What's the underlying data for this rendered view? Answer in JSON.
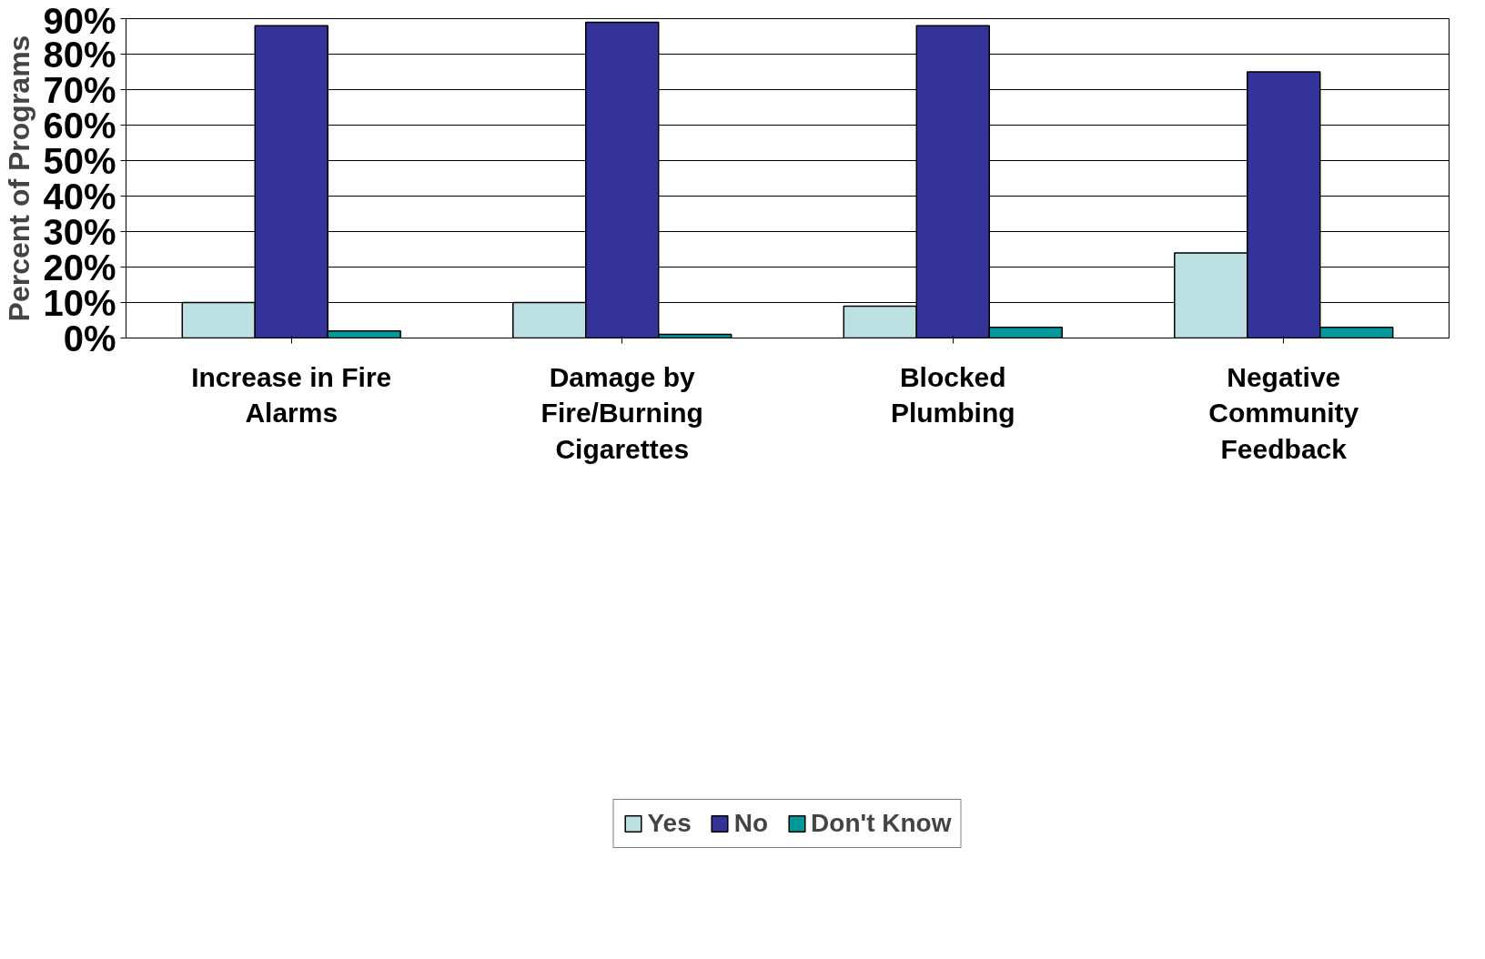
{
  "chart_data": {
    "type": "bar",
    "ylabel": "Percent of Programs",
    "categories": [
      "Increase in Fire\nAlarms",
      "Damage by\nFire/Burning\nCigarettes",
      "Blocked\nPlumbing",
      "Negative\nCommunity\nFeedback"
    ],
    "series": [
      {
        "name": "Yes",
        "color": "#bde0e3",
        "values": [
          10,
          10,
          9,
          24
        ]
      },
      {
        "name": "No",
        "color": "#333399",
        "values": [
          88,
          89,
          88,
          75
        ]
      },
      {
        "name": "Don't Know",
        "color": "#009999",
        "values": [
          2,
          1,
          3,
          3
        ]
      }
    ],
    "ylim": [
      0,
      90
    ],
    "yticks": [
      {
        "value": 0,
        "label": "0%"
      },
      {
        "value": 10,
        "label": "10%"
      },
      {
        "value": 20,
        "label": "20%"
      },
      {
        "value": 30,
        "label": "30%"
      },
      {
        "value": 40,
        "label": "40%"
      },
      {
        "value": 50,
        "label": "50%"
      },
      {
        "value": 60,
        "label": "60%"
      },
      {
        "value": 70,
        "label": "70%"
      },
      {
        "value": 80,
        "label": "80%"
      },
      {
        "value": 90,
        "label": "90%"
      }
    ],
    "grid": "y",
    "legend": "bottom"
  }
}
